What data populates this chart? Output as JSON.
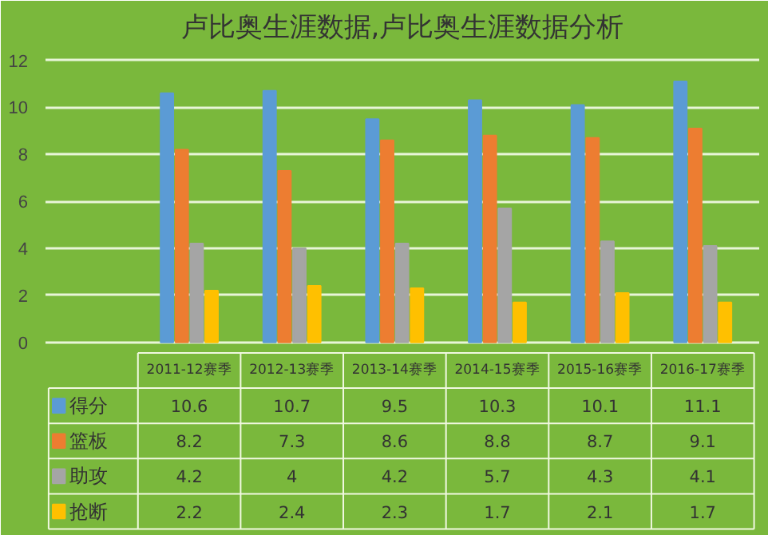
{
  "chart_data": {
    "type": "bar",
    "title": "卢比奥生涯数据,卢比奥生涯数据分析",
    "categories": [
      "2011-12赛季",
      "2012-13赛季",
      "2013-14赛季",
      "2014-15赛季",
      "2015-16赛季",
      "2016-17赛季"
    ],
    "series": [
      {
        "name": "得分",
        "color": "#5b9bd5",
        "values": [
          10.6,
          10.7,
          9.5,
          10.3,
          10.1,
          11.1
        ]
      },
      {
        "name": "篮板",
        "color": "#ed7d31",
        "values": [
          8.2,
          7.3,
          8.6,
          8.8,
          8.7,
          9.1
        ]
      },
      {
        "name": "助攻",
        "color": "#a5a5a5",
        "values": [
          4.2,
          4,
          4.2,
          5.7,
          4.3,
          4.1
        ]
      },
      {
        "name": "抢断",
        "color": "#ffc000",
        "values": [
          2.2,
          2.4,
          2.3,
          1.7,
          2.1,
          1.7
        ]
      }
    ],
    "ylim": [
      0,
      12
    ],
    "yticks": [
      0,
      2,
      4,
      6,
      8,
      10,
      12
    ],
    "grid": "y",
    "legend": "bottom",
    "data_labels": true
  }
}
